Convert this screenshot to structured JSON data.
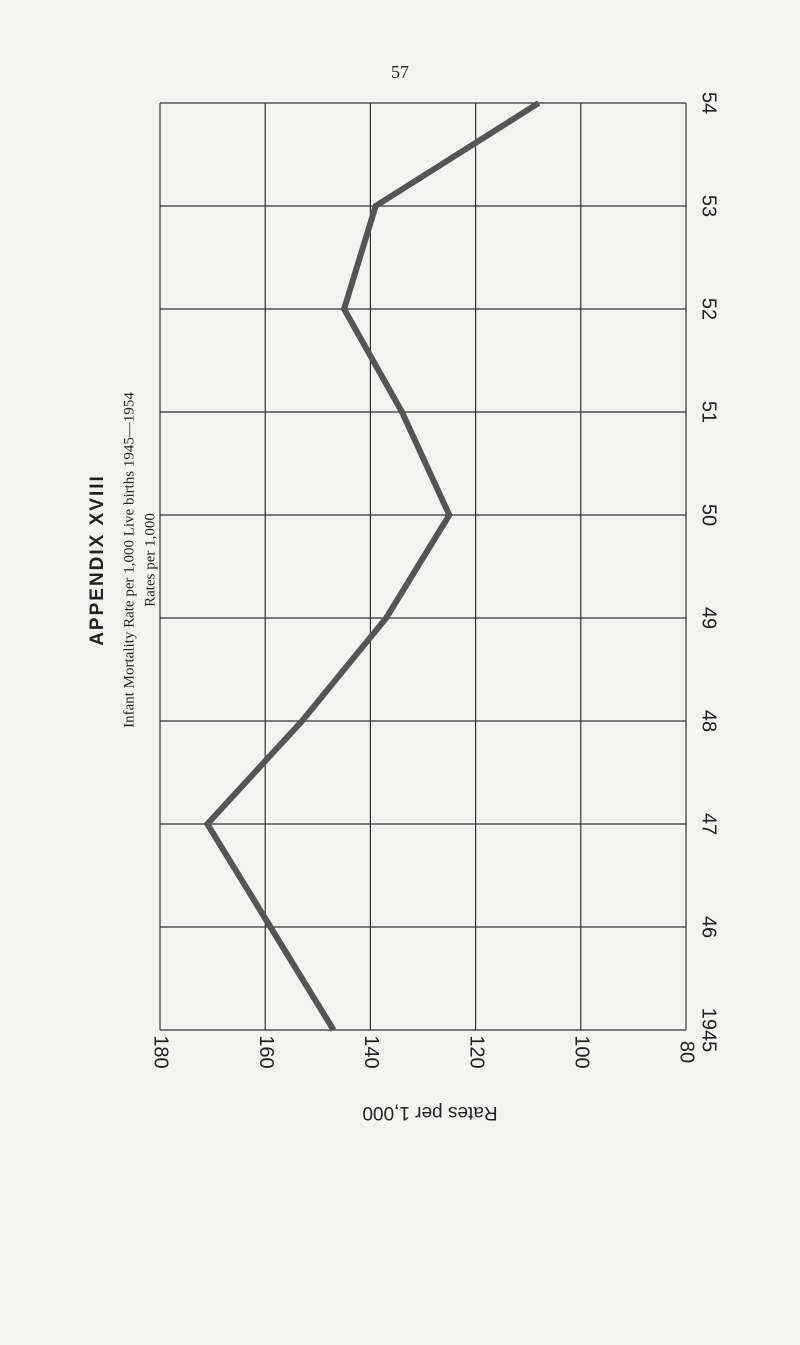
{
  "page_number": "57",
  "heading": "APPENDIX XVIII",
  "chart_data": {
    "type": "line",
    "title": "Infant Mortality Rate per 1,000 Live births 1945—1954",
    "subtitle": "Rates per 1,000",
    "ylabel": "Rates per 1,000",
    "x": [
      1945,
      1946,
      1947,
      1948,
      1949,
      1950,
      1951,
      1952,
      1953,
      1954
    ],
    "values": [
      147,
      159,
      171,
      153,
      137,
      125,
      134,
      145,
      139,
      108
    ],
    "color": "#555555",
    "xlim": [
      1945,
      1954
    ],
    "xticks": [
      1945,
      {
        "value": 1946,
        "label": "46"
      },
      {
        "value": 1947,
        "label": "47"
      },
      {
        "value": 1948,
        "label": "48"
      },
      {
        "value": 1949,
        "label": "49"
      },
      {
        "value": 1950,
        "label": "50"
      },
      {
        "value": 1951,
        "label": "51"
      },
      {
        "value": 1952,
        "label": "52"
      },
      {
        "value": 1953,
        "label": "53"
      },
      {
        "value": 1954,
        "label": "54"
      }
    ],
    "ylim": [
      180,
      80
    ],
    "yticks": [
      180,
      160,
      140,
      120,
      100,
      80
    ],
    "grid": true
  }
}
